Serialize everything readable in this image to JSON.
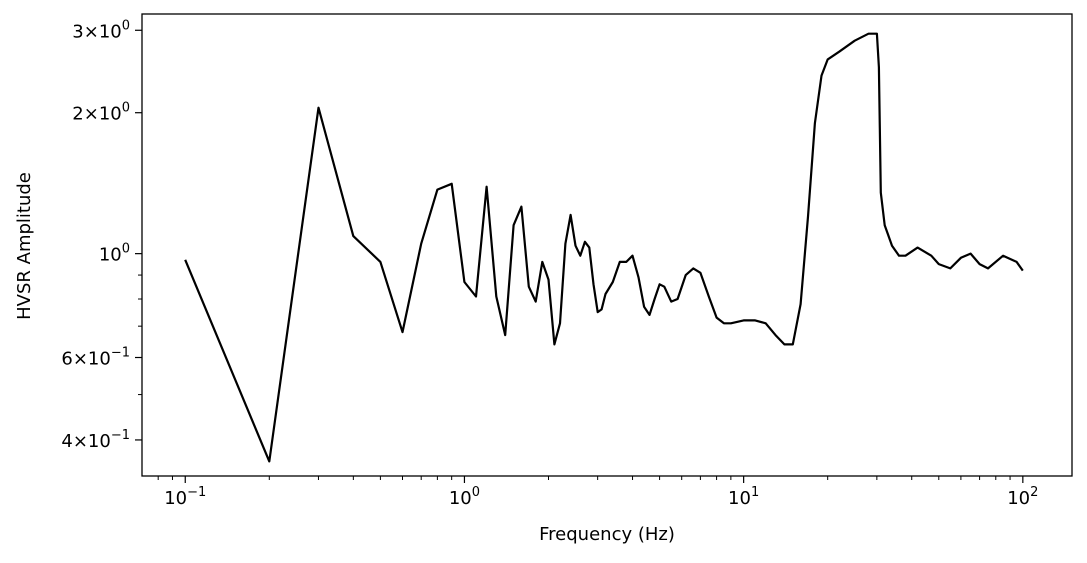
{
  "chart_data": {
    "type": "line",
    "title": "",
    "xlabel": "Frequency (Hz)",
    "ylabel": "HVSR Amplitude",
    "xscale": "log",
    "yscale": "log",
    "xlim": [
      0.07,
      150
    ],
    "ylim": [
      0.335,
      3.25
    ],
    "grid": false,
    "legend": "none",
    "line_color": "#000000",
    "x_ticks": [
      {
        "value": 0.1,
        "base": "10",
        "exp": "−1"
      },
      {
        "value": 1,
        "base": "10",
        "exp": "0"
      },
      {
        "value": 10,
        "base": "10",
        "exp": "1"
      },
      {
        "value": 100,
        "base": "10",
        "exp": "2"
      }
    ],
    "y_ticks": [
      {
        "value": 0.4,
        "mant": "4",
        "base": "10",
        "exp": "−1"
      },
      {
        "value": 0.6,
        "mant": "6",
        "base": "10",
        "exp": "−1"
      },
      {
        "value": 1.0,
        "mant": "",
        "base": "10",
        "exp": "0"
      },
      {
        "value": 2.0,
        "mant": "2",
        "base": "10",
        "exp": "0"
      },
      {
        "value": 3.0,
        "mant": "3",
        "base": "10",
        "exp": "0"
      }
    ],
    "series": [
      {
        "x": [
          0.1,
          0.2,
          0.3,
          0.4,
          0.5,
          0.6,
          0.7,
          0.8,
          0.9,
          1.0,
          1.1,
          1.2,
          1.3,
          1.4,
          1.5,
          1.6,
          1.7,
          1.8,
          1.9,
          2.0,
          2.1,
          2.2,
          2.3,
          2.4,
          2.5,
          2.6,
          2.7,
          2.8,
          2.9,
          3.0,
          3.1,
          3.2,
          3.4,
          3.6,
          3.8,
          4.0,
          4.2,
          4.4,
          4.6,
          4.8,
          5.0,
          5.2,
          5.5,
          5.8,
          6.2,
          6.6,
          7.0,
          7.5,
          8.0,
          8.5,
          9.0,
          10.0,
          11.0,
          12.0,
          13.0,
          14.0,
          15.0,
          16.0,
          17.0,
          18.0,
          19.0,
          20.0,
          22.0,
          25.0,
          28.0,
          30.0,
          30.5,
          31.0,
          32.0,
          34.0,
          36.0,
          38.0,
          42.0,
          47.0,
          50.0,
          55.0,
          60.0,
          65.0,
          70.0,
          75.0,
          85.0,
          95.0,
          100.0
        ],
        "y": [
          0.97,
          0.36,
          2.05,
          1.09,
          0.96,
          0.68,
          1.05,
          1.37,
          1.41,
          0.87,
          0.81,
          1.39,
          0.81,
          0.67,
          1.15,
          1.26,
          0.85,
          0.79,
          0.96,
          0.88,
          0.64,
          0.71,
          1.05,
          1.21,
          1.04,
          0.99,
          1.06,
          1.03,
          0.86,
          0.75,
          0.76,
          0.82,
          0.87,
          0.96,
          0.96,
          0.99,
          0.89,
          0.77,
          0.74,
          0.8,
          0.86,
          0.85,
          0.79,
          0.8,
          0.9,
          0.93,
          0.91,
          0.81,
          0.73,
          0.71,
          0.71,
          0.72,
          0.72,
          0.71,
          0.67,
          0.64,
          0.64,
          0.78,
          1.2,
          1.9,
          2.4,
          2.6,
          2.7,
          2.85,
          2.95,
          2.95,
          2.5,
          1.35,
          1.15,
          1.04,
          0.99,
          0.99,
          1.03,
          0.99,
          0.95,
          0.93,
          0.98,
          1.0,
          0.95,
          0.93,
          0.99,
          0.96,
          0.92
        ]
      }
    ]
  }
}
